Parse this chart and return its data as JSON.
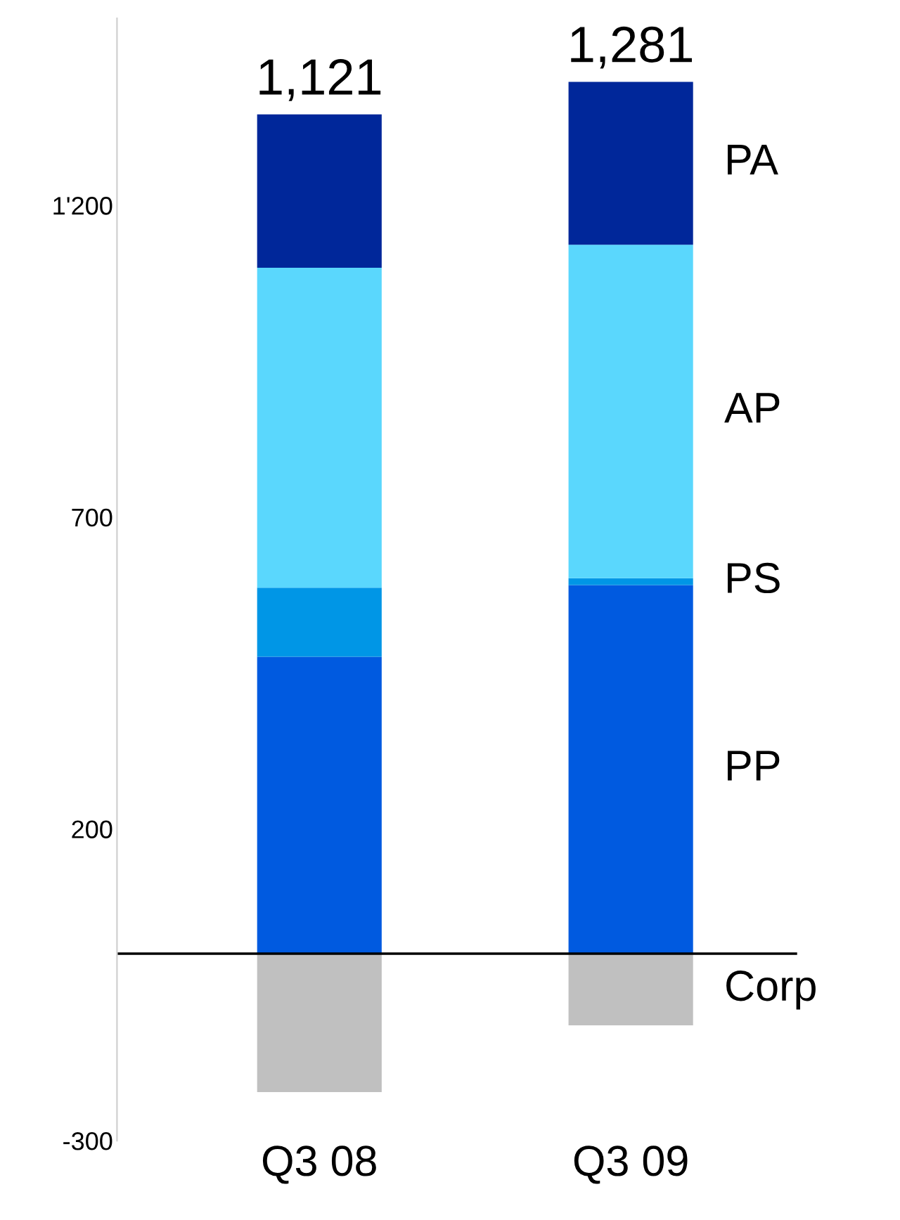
{
  "chart_data": {
    "type": "bar",
    "stacked": true,
    "categories": [
      "Q3 08",
      "Q3 09"
    ],
    "series": [
      {
        "name": "PP",
        "color": "#005ae0",
        "values": [
          476,
          591
        ]
      },
      {
        "name": "PS",
        "color": "#0096e6",
        "values": [
          111,
          11
        ]
      },
      {
        "name": "AP",
        "color": "#5ad7fd",
        "values": [
          513,
          535
        ]
      },
      {
        "name": "PA",
        "color": "#00279a",
        "values": [
          246,
          261
        ]
      },
      {
        "name": "Corp",
        "color": "#c0c0c0",
        "values": [
          -222,
          -115
        ]
      }
    ],
    "totals": [
      "1,121",
      "1,281"
    ],
    "ylim": [
      -300,
      1500
    ],
    "yticks": [
      -300,
      200,
      700,
      {
        "value": 1200,
        "label": "1'200"
      }
    ],
    "grid": false,
    "legend": false
  }
}
